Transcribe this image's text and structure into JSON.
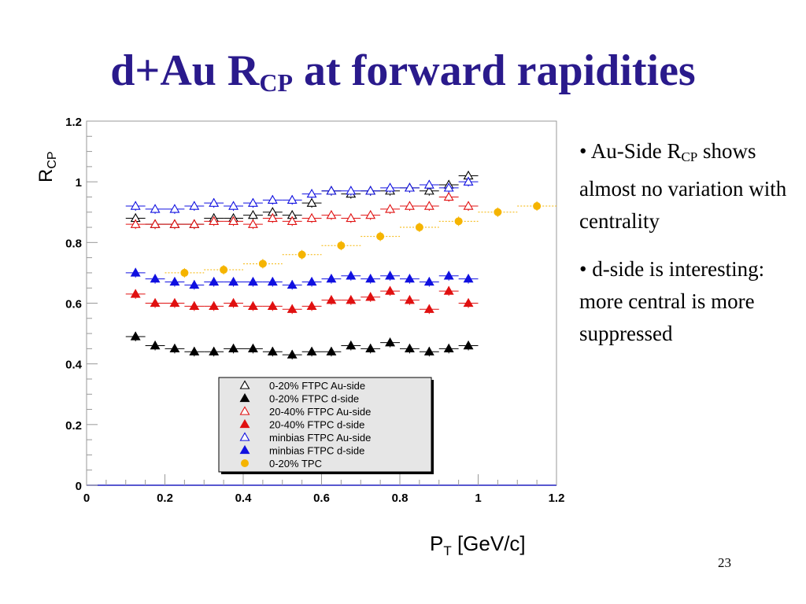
{
  "slide": {
    "title_main": "d+Au R",
    "title_sub": "CP",
    "title_rest": " at forward rapidities",
    "page_number": "23"
  },
  "bullets": [
    {
      "prefix": "• Au-Side R",
      "sub": "CP",
      "rest": " shows almost no variation with centrality"
    },
    {
      "prefix": "• d-side is interesting: more central is more suppressed",
      "sub": "",
      "rest": ""
    }
  ],
  "chart_data": {
    "type": "scatter",
    "ylabel": "R",
    "ylabel_sub": "CP",
    "xlabel": "P",
    "xlabel_sub": "T",
    "xlabel_rest": " [GeV/c]",
    "xlim": [
      0,
      1.2
    ],
    "ylim": [
      0,
      1.2
    ],
    "x_ticks": [
      "0",
      "0.2",
      "0.4",
      "0.6",
      "0.8",
      "1",
      "1.2"
    ],
    "y_ticks": [
      "0",
      "0.2",
      "0.4",
      "0.6",
      "0.8",
      "1",
      "1.2"
    ],
    "grid": false,
    "legend_position": "bottom-center",
    "colors": {
      "black": "#000000",
      "red": "#e01010",
      "blue": "#1010e0",
      "gold": "#f5b400",
      "axis": "#2020c0"
    },
    "series": [
      {
        "name": "0-20% FTPC Au-side",
        "color": "#000000",
        "marker": "triangle-open",
        "x": [
          0.125,
          0.175,
          0.225,
          0.275,
          0.325,
          0.375,
          0.425,
          0.475,
          0.525,
          0.575,
          0.625,
          0.675,
          0.725,
          0.775,
          0.825,
          0.875,
          0.925,
          0.975
        ],
        "y": [
          0.88,
          0.86,
          0.86,
          0.86,
          0.88,
          0.88,
          0.89,
          0.9,
          0.89,
          0.93,
          0.97,
          0.96,
          0.97,
          0.97,
          0.98,
          0.97,
          0.99,
          1.02
        ]
      },
      {
        "name": "0-20% FTPC d-side",
        "color": "#000000",
        "marker": "triangle-filled",
        "x": [
          0.125,
          0.175,
          0.225,
          0.275,
          0.325,
          0.375,
          0.425,
          0.475,
          0.525,
          0.575,
          0.625,
          0.675,
          0.725,
          0.775,
          0.825,
          0.875,
          0.925,
          0.975
        ],
        "y": [
          0.49,
          0.46,
          0.45,
          0.44,
          0.44,
          0.45,
          0.45,
          0.44,
          0.43,
          0.44,
          0.44,
          0.46,
          0.45,
          0.47,
          0.45,
          0.44,
          0.45,
          0.46
        ]
      },
      {
        "name": "20-40% FTPC Au-side",
        "color": "#e01010",
        "marker": "triangle-open",
        "x": [
          0.125,
          0.175,
          0.225,
          0.275,
          0.325,
          0.375,
          0.425,
          0.475,
          0.525,
          0.575,
          0.625,
          0.675,
          0.725,
          0.775,
          0.825,
          0.875,
          0.925,
          0.975
        ],
        "y": [
          0.86,
          0.86,
          0.86,
          0.86,
          0.87,
          0.87,
          0.86,
          0.88,
          0.87,
          0.88,
          0.89,
          0.88,
          0.89,
          0.91,
          0.92,
          0.92,
          0.95,
          0.92
        ]
      },
      {
        "name": "20-40% FTPC d-side",
        "color": "#e01010",
        "marker": "triangle-filled",
        "x": [
          0.125,
          0.175,
          0.225,
          0.275,
          0.325,
          0.375,
          0.425,
          0.475,
          0.525,
          0.575,
          0.625,
          0.675,
          0.725,
          0.775,
          0.825,
          0.875,
          0.925,
          0.975
        ],
        "y": [
          0.63,
          0.6,
          0.6,
          0.59,
          0.59,
          0.6,
          0.59,
          0.59,
          0.58,
          0.59,
          0.61,
          0.61,
          0.62,
          0.64,
          0.61,
          0.58,
          0.64,
          0.6
        ]
      },
      {
        "name": "minbias FTPC Au-side",
        "color": "#1010e0",
        "marker": "triangle-open",
        "x": [
          0.125,
          0.175,
          0.225,
          0.275,
          0.325,
          0.375,
          0.425,
          0.475,
          0.525,
          0.575,
          0.625,
          0.675,
          0.725,
          0.775,
          0.825,
          0.875,
          0.925,
          0.975
        ],
        "y": [
          0.92,
          0.91,
          0.91,
          0.92,
          0.93,
          0.92,
          0.93,
          0.94,
          0.94,
          0.96,
          0.97,
          0.97,
          0.97,
          0.98,
          0.98,
          0.99,
          0.98,
          1.0
        ]
      },
      {
        "name": "minbias FTPC d-side",
        "color": "#1010e0",
        "marker": "triangle-filled",
        "x": [
          0.125,
          0.175,
          0.225,
          0.275,
          0.325,
          0.375,
          0.425,
          0.475,
          0.525,
          0.575,
          0.625,
          0.675,
          0.725,
          0.775,
          0.825,
          0.875,
          0.925,
          0.975
        ],
        "y": [
          0.7,
          0.68,
          0.67,
          0.66,
          0.67,
          0.67,
          0.67,
          0.67,
          0.66,
          0.67,
          0.68,
          0.69,
          0.68,
          0.69,
          0.68,
          0.67,
          0.69,
          0.68
        ]
      },
      {
        "name": "0-20% TPC",
        "color": "#f5b400",
        "marker": "circle-filled",
        "x": [
          0.25,
          0.35,
          0.45,
          0.55,
          0.65,
          0.75,
          0.85,
          0.95,
          1.05,
          1.15
        ],
        "y": [
          0.7,
          0.71,
          0.73,
          0.76,
          0.79,
          0.82,
          0.85,
          0.87,
          0.9,
          0.92
        ]
      }
    ]
  }
}
